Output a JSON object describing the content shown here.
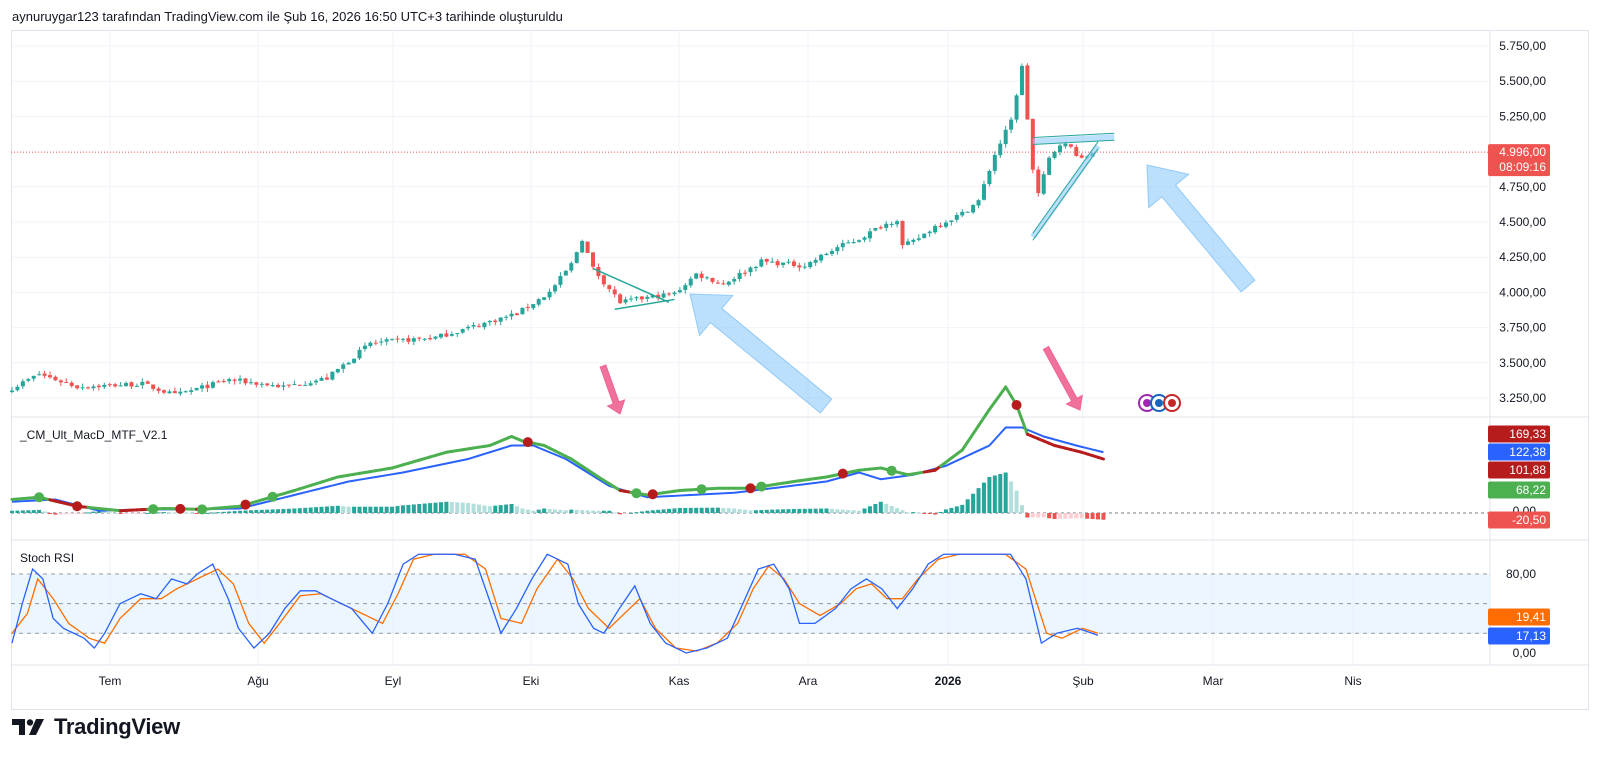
{
  "caption": "aynuruygar123 tarafından TradingView.com ile Şub 16, 2026 16:50 UTC+3 tarihinde oluşturuldu",
  "brand": "TradingView",
  "colors": {
    "up": "#26a69a",
    "down": "#ef5350",
    "price_line": "#ef5350",
    "macd_green": "#4caf50",
    "macd_red": "#b71c1c",
    "signal_blue": "#2962ff",
    "hist_up": "#26a69a",
    "hist_up_light": "#b2dfdb",
    "hist_down": "#ef5350",
    "hist_down_light": "#ffcdd2",
    "stoch_k": "#2962ff",
    "stoch_d": "#ff6d00",
    "band_fill": "#e3f2fd",
    "annotation_blue": "#90caf9",
    "annotation_pink": "#f06292",
    "triangle_line": "#26a69a"
  },
  "x_axis": {
    "labels": [
      {
        "text": "Tem",
        "bold": false
      },
      {
        "text": "Ağu",
        "bold": false
      },
      {
        "text": "Eyl",
        "bold": false
      },
      {
        "text": "Eki",
        "bold": false
      },
      {
        "text": "Kas",
        "bold": false
      },
      {
        "text": "Ara",
        "bold": false
      },
      {
        "text": "2026",
        "bold": true
      },
      {
        "text": "Şub",
        "bold": false
      },
      {
        "text": "Mar",
        "bold": false
      },
      {
        "text": "Nis",
        "bold": false
      }
    ]
  },
  "chart_data": [
    {
      "type": "candlestick",
      "title": "",
      "y_ticks": [
        "5.750,00",
        "5.500,00",
        "5.250,00",
        "4.750,00",
        "4.500,00",
        "4.250,00",
        "4.000,00",
        "3.750,00",
        "3.500,00",
        "3.250,00"
      ],
      "y_tick_values": [
        5750,
        5500,
        5250,
        4750,
        4500,
        4250,
        4000,
        3750,
        3500,
        3250
      ],
      "ylim": [
        3130,
        5880
      ],
      "last_price": 4996,
      "price_badge": "4.996,00",
      "countdown_badge": "08:09:16",
      "close_anchors": [
        [
          0,
          3320
        ],
        [
          5,
          3420
        ],
        [
          12,
          3330
        ],
        [
          24,
          3350
        ],
        [
          30,
          3270
        ],
        [
          40,
          3380
        ],
        [
          50,
          3330
        ],
        [
          58,
          3390
        ],
        [
          66,
          3640
        ],
        [
          78,
          3680
        ],
        [
          86,
          3770
        ],
        [
          93,
          3850
        ],
        [
          99,
          4000
        ],
        [
          103,
          4200
        ],
        [
          105,
          4380
        ],
        [
          107,
          4170
        ],
        [
          112,
          3930
        ],
        [
          118,
          3970
        ],
        [
          122,
          3990
        ],
        [
          126,
          4130
        ],
        [
          131,
          4060
        ],
        [
          138,
          4220
        ],
        [
          146,
          4190
        ],
        [
          152,
          4320
        ],
        [
          156,
          4380
        ],
        [
          160,
          4470
        ],
        [
          163,
          4520
        ],
        [
          164,
          4330
        ],
        [
          166,
          4360
        ],
        [
          170,
          4470
        ],
        [
          175,
          4560
        ],
        [
          178,
          4650
        ],
        [
          181,
          4980
        ],
        [
          184,
          5220
        ],
        [
          186,
          5600
        ],
        [
          188,
          4870
        ],
        [
          189,
          4700
        ],
        [
          191,
          4950
        ],
        [
          193,
          5060
        ],
        [
          195,
          5030
        ],
        [
          197,
          4940
        ],
        [
          199,
          4996
        ]
      ],
      "triangle_1": [
        [
          107,
          4170
        ],
        [
          121,
          3930
        ],
        [
          111,
          3880
        ],
        [
          122,
          3950
        ]
      ],
      "triangle_2": [
        [
          188,
          4420
        ],
        [
          200,
          5070
        ],
        [
          188,
          5100
        ],
        [
          203,
          5130
        ]
      ]
    },
    {
      "type": "line",
      "title": "_CM_Ult_MacD_MTF_V2.1",
      "zero_label": "0,00",
      "badges": [
        "169,33",
        "122,38",
        "101,88",
        "68,22",
        "-20,50"
      ],
      "badge_values": [
        169.33,
        122.38,
        101.88,
        68.22,
        -20.5
      ],
      "ylim": [
        -50,
        340
      ],
      "macd_anchors": [
        [
          0,
          30
        ],
        [
          5,
          35
        ],
        [
          12,
          15
        ],
        [
          20,
          5
        ],
        [
          28,
          10
        ],
        [
          35,
          8
        ],
        [
          42,
          15
        ],
        [
          52,
          50
        ],
        [
          60,
          80
        ],
        [
          70,
          100
        ],
        [
          80,
          135
        ],
        [
          88,
          150
        ],
        [
          92,
          170
        ],
        [
          94,
          160
        ],
        [
          98,
          150
        ],
        [
          103,
          120
        ],
        [
          108,
          80
        ],
        [
          112,
          50
        ],
        [
          117,
          40
        ],
        [
          123,
          50
        ],
        [
          130,
          55
        ],
        [
          136,
          55
        ],
        [
          144,
          70
        ],
        [
          150,
          80
        ],
        [
          156,
          95
        ],
        [
          160,
          100
        ],
        [
          165,
          85
        ],
        [
          170,
          95
        ],
        [
          175,
          140
        ],
        [
          180,
          230
        ],
        [
          183,
          280
        ],
        [
          185,
          240
        ],
        [
          187,
          175
        ],
        [
          192,
          150
        ],
        [
          197,
          135
        ],
        [
          201,
          120
        ]
      ],
      "signal_anchors": [
        [
          0,
          25
        ],
        [
          8,
          30
        ],
        [
          16,
          5
        ],
        [
          24,
          8
        ],
        [
          32,
          8
        ],
        [
          42,
          10
        ],
        [
          52,
          40
        ],
        [
          62,
          70
        ],
        [
          72,
          90
        ],
        [
          84,
          120
        ],
        [
          92,
          150
        ],
        [
          96,
          150
        ],
        [
          102,
          120
        ],
        [
          110,
          60
        ],
        [
          117,
          35
        ],
        [
          125,
          40
        ],
        [
          133,
          45
        ],
        [
          140,
          55
        ],
        [
          150,
          70
        ],
        [
          156,
          90
        ],
        [
          160,
          75
        ],
        [
          166,
          85
        ],
        [
          172,
          105
        ],
        [
          180,
          150
        ],
        [
          183,
          190
        ],
        [
          186,
          190
        ],
        [
          190,
          170
        ],
        [
          196,
          150
        ],
        [
          201,
          135
        ]
      ],
      "cross_points": [
        {
          "i": 5,
          "up": true
        },
        {
          "i": 12,
          "up": false
        },
        {
          "i": 26,
          "up": true
        },
        {
          "i": 31,
          "up": false
        },
        {
          "i": 35,
          "up": true
        },
        {
          "i": 43,
          "up": false
        },
        {
          "i": 48,
          "up": true
        },
        {
          "i": 95,
          "up": false
        },
        {
          "i": 115,
          "up": true
        },
        {
          "i": 118,
          "up": false
        },
        {
          "i": 127,
          "up": true
        },
        {
          "i": 136,
          "up": false
        },
        {
          "i": 138,
          "up": true
        },
        {
          "i": 153,
          "up": false
        },
        {
          "i": 162,
          "up": true
        },
        {
          "i": 185,
          "up": false
        }
      ]
    },
    {
      "type": "line",
      "title": "Stoch RSI",
      "y_ticks": [
        "80,00",
        "0,00"
      ],
      "y_tick_values": [
        80,
        0
      ],
      "band": [
        20,
        80
      ],
      "mid_line": 50,
      "badges": [
        "19,41",
        "17,13"
      ],
      "badge_values": [
        19.41,
        17.13
      ],
      "ylim": [
        -3,
        106
      ],
      "k_anchors": [
        [
          0,
          10
        ],
        [
          2,
          50
        ],
        [
          4,
          85
        ],
        [
          6,
          75
        ],
        [
          8,
          35
        ],
        [
          10,
          25
        ],
        [
          14,
          15
        ],
        [
          16,
          5
        ],
        [
          18,
          20
        ],
        [
          21,
          50
        ],
        [
          25,
          60
        ],
        [
          28,
          55
        ],
        [
          31,
          75
        ],
        [
          34,
          70
        ],
        [
          36,
          80
        ],
        [
          39,
          90
        ],
        [
          42,
          55
        ],
        [
          44,
          25
        ],
        [
          47,
          5
        ],
        [
          50,
          20
        ],
        [
          53,
          45
        ],
        [
          56,
          63
        ],
        [
          59,
          63
        ],
        [
          62,
          55
        ],
        [
          66,
          45
        ],
        [
          70,
          20
        ],
        [
          73,
          50
        ],
        [
          76,
          90
        ],
        [
          79,
          100
        ],
        [
          86,
          100
        ],
        [
          90,
          95
        ],
        [
          93,
          50
        ],
        [
          95,
          20
        ],
        [
          98,
          45
        ],
        [
          101,
          75
        ],
        [
          104,
          100
        ],
        [
          108,
          90
        ],
        [
          110,
          50
        ],
        [
          113,
          25
        ],
        [
          115,
          20
        ],
        [
          118,
          45
        ],
        [
          121,
          68
        ],
        [
          124,
          30
        ],
        [
          127,
          10
        ],
        [
          131,
          0
        ],
        [
          135,
          5
        ],
        [
          139,
          15
        ],
        [
          142,
          50
        ],
        [
          145,
          85
        ],
        [
          148,
          90
        ],
        [
          151,
          65
        ],
        [
          153,
          30
        ],
        [
          156,
          30
        ],
        [
          160,
          45
        ],
        [
          163,
          65
        ],
        [
          166,
          75
        ],
        [
          169,
          65
        ],
        [
          172,
          45
        ],
        [
          175,
          65
        ],
        [
          178,
          90
        ],
        [
          181,
          100
        ],
        [
          190,
          100
        ],
        [
          194,
          100
        ],
        [
          197,
          75
        ],
        [
          200,
          10
        ],
        [
          203,
          20
        ],
        [
          207,
          25
        ],
        [
          211,
          18
        ]
      ],
      "d_anchors": [
        [
          0,
          20
        ],
        [
          3,
          40
        ],
        [
          5,
          75
        ],
        [
          8,
          55
        ],
        [
          11,
          30
        ],
        [
          15,
          15
        ],
        [
          18,
          10
        ],
        [
          21,
          35
        ],
        [
          25,
          55
        ],
        [
          29,
          55
        ],
        [
          32,
          65
        ],
        [
          36,
          75
        ],
        [
          40,
          85
        ],
        [
          43,
          70
        ],
        [
          46,
          30
        ],
        [
          49,
          10
        ],
        [
          52,
          30
        ],
        [
          56,
          58
        ],
        [
          60,
          60
        ],
        [
          64,
          50
        ],
        [
          68,
          40
        ],
        [
          72,
          30
        ],
        [
          75,
          60
        ],
        [
          78,
          95
        ],
        [
          82,
          100
        ],
        [
          88,
          100
        ],
        [
          92,
          85
        ],
        [
          95,
          35
        ],
        [
          99,
          30
        ],
        [
          102,
          65
        ],
        [
          106,
          95
        ],
        [
          109,
          75
        ],
        [
          112,
          45
        ],
        [
          116,
          25
        ],
        [
          119,
          40
        ],
        [
          122,
          55
        ],
        [
          125,
          25
        ],
        [
          129,
          5
        ],
        [
          133,
          2
        ],
        [
          137,
          10
        ],
        [
          141,
          30
        ],
        [
          144,
          65
        ],
        [
          147,
          88
        ],
        [
          150,
          75
        ],
        [
          153,
          50
        ],
        [
          157,
          38
        ],
        [
          161,
          50
        ],
        [
          164,
          65
        ],
        [
          167,
          70
        ],
        [
          170,
          55
        ],
        [
          173,
          55
        ],
        [
          176,
          75
        ],
        [
          180,
          95
        ],
        [
          184,
          100
        ],
        [
          193,
          100
        ],
        [
          197,
          85
        ],
        [
          201,
          20
        ],
        [
          204,
          15
        ],
        [
          208,
          25
        ],
        [
          211,
          20
        ]
      ]
    }
  ]
}
